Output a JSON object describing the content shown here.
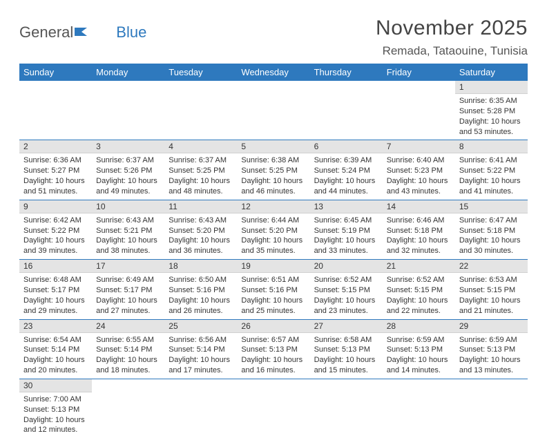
{
  "logo": {
    "text1": "General",
    "text2": "Blue"
  },
  "title": "November 2025",
  "location": "Remada, Tataouine, Tunisia",
  "weekdays": [
    "Sunday",
    "Monday",
    "Tuesday",
    "Wednesday",
    "Thursday",
    "Friday",
    "Saturday"
  ],
  "colors": {
    "header_bg": "#2e79be",
    "header_fg": "#ffffff",
    "daynum_bg": "#e4e4e4",
    "border": "#2e79be",
    "text": "#333333",
    "logo_blue": "#2e79be"
  },
  "days": [
    {
      "n": 1,
      "sr": "6:35 AM",
      "ss": "5:28 PM",
      "dl": "10 hours and 53 minutes."
    },
    {
      "n": 2,
      "sr": "6:36 AM",
      "ss": "5:27 PM",
      "dl": "10 hours and 51 minutes."
    },
    {
      "n": 3,
      "sr": "6:37 AM",
      "ss": "5:26 PM",
      "dl": "10 hours and 49 minutes."
    },
    {
      "n": 4,
      "sr": "6:37 AM",
      "ss": "5:25 PM",
      "dl": "10 hours and 48 minutes."
    },
    {
      "n": 5,
      "sr": "6:38 AM",
      "ss": "5:25 PM",
      "dl": "10 hours and 46 minutes."
    },
    {
      "n": 6,
      "sr": "6:39 AM",
      "ss": "5:24 PM",
      "dl": "10 hours and 44 minutes."
    },
    {
      "n": 7,
      "sr": "6:40 AM",
      "ss": "5:23 PM",
      "dl": "10 hours and 43 minutes."
    },
    {
      "n": 8,
      "sr": "6:41 AM",
      "ss": "5:22 PM",
      "dl": "10 hours and 41 minutes."
    },
    {
      "n": 9,
      "sr": "6:42 AM",
      "ss": "5:22 PM",
      "dl": "10 hours and 39 minutes."
    },
    {
      "n": 10,
      "sr": "6:43 AM",
      "ss": "5:21 PM",
      "dl": "10 hours and 38 minutes."
    },
    {
      "n": 11,
      "sr": "6:43 AM",
      "ss": "5:20 PM",
      "dl": "10 hours and 36 minutes."
    },
    {
      "n": 12,
      "sr": "6:44 AM",
      "ss": "5:20 PM",
      "dl": "10 hours and 35 minutes."
    },
    {
      "n": 13,
      "sr": "6:45 AM",
      "ss": "5:19 PM",
      "dl": "10 hours and 33 minutes."
    },
    {
      "n": 14,
      "sr": "6:46 AM",
      "ss": "5:18 PM",
      "dl": "10 hours and 32 minutes."
    },
    {
      "n": 15,
      "sr": "6:47 AM",
      "ss": "5:18 PM",
      "dl": "10 hours and 30 minutes."
    },
    {
      "n": 16,
      "sr": "6:48 AM",
      "ss": "5:17 PM",
      "dl": "10 hours and 29 minutes."
    },
    {
      "n": 17,
      "sr": "6:49 AM",
      "ss": "5:17 PM",
      "dl": "10 hours and 27 minutes."
    },
    {
      "n": 18,
      "sr": "6:50 AM",
      "ss": "5:16 PM",
      "dl": "10 hours and 26 minutes."
    },
    {
      "n": 19,
      "sr": "6:51 AM",
      "ss": "5:16 PM",
      "dl": "10 hours and 25 minutes."
    },
    {
      "n": 20,
      "sr": "6:52 AM",
      "ss": "5:15 PM",
      "dl": "10 hours and 23 minutes."
    },
    {
      "n": 21,
      "sr": "6:52 AM",
      "ss": "5:15 PM",
      "dl": "10 hours and 22 minutes."
    },
    {
      "n": 22,
      "sr": "6:53 AM",
      "ss": "5:15 PM",
      "dl": "10 hours and 21 minutes."
    },
    {
      "n": 23,
      "sr": "6:54 AM",
      "ss": "5:14 PM",
      "dl": "10 hours and 20 minutes."
    },
    {
      "n": 24,
      "sr": "6:55 AM",
      "ss": "5:14 PM",
      "dl": "10 hours and 18 minutes."
    },
    {
      "n": 25,
      "sr": "6:56 AM",
      "ss": "5:14 PM",
      "dl": "10 hours and 17 minutes."
    },
    {
      "n": 26,
      "sr": "6:57 AM",
      "ss": "5:13 PM",
      "dl": "10 hours and 16 minutes."
    },
    {
      "n": 27,
      "sr": "6:58 AM",
      "ss": "5:13 PM",
      "dl": "10 hours and 15 minutes."
    },
    {
      "n": 28,
      "sr": "6:59 AM",
      "ss": "5:13 PM",
      "dl": "10 hours and 14 minutes."
    },
    {
      "n": 29,
      "sr": "6:59 AM",
      "ss": "5:13 PM",
      "dl": "10 hours and 13 minutes."
    },
    {
      "n": 30,
      "sr": "7:00 AM",
      "ss": "5:13 PM",
      "dl": "10 hours and 12 minutes."
    }
  ],
  "labels": {
    "sunrise": "Sunrise:",
    "sunset": "Sunset:",
    "daylight": "Daylight:"
  },
  "first_weekday_index": 6
}
